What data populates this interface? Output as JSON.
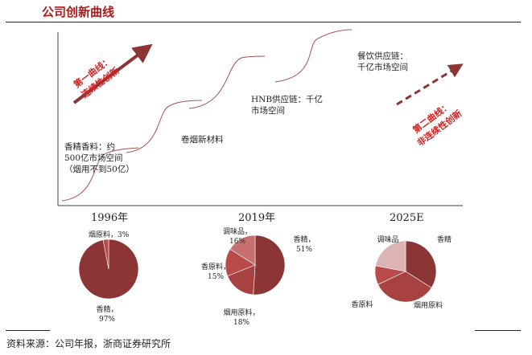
{
  "title": "公司创新曲线",
  "curve_chart": {
    "first_curve": {
      "line1": "第一曲线：",
      "line2": "连续性创新"
    },
    "second_curve": {
      "line1": "第二曲线：",
      "line2": "非连续性创新"
    },
    "annotations": [
      {
        "lines": [
          "香精香料：约",
          "500亿市场空间",
          "（烟用不到50亿）"
        ]
      },
      {
        "lines": [
          "卷烟新材料"
        ]
      },
      {
        "lines": [
          "HNB供应链：千亿",
          "市场空间"
        ]
      },
      {
        "lines": [
          "餐饮供应链：",
          "千亿市场空间"
        ]
      }
    ]
  },
  "chart_data": [
    {
      "type": "pie",
      "title": "1996年",
      "labels": [
        "香精",
        "烟原料"
      ],
      "values": [
        97,
        3
      ],
      "label_texts": [
        "香精，\n97%",
        "烟原料，3%"
      ],
      "colors": [
        "#8b3535",
        "#b84a4a"
      ]
    },
    {
      "type": "pie",
      "title": "2019年",
      "labels": [
        "香精",
        "烟用原料",
        "香原料",
        "调味品"
      ],
      "values": [
        51,
        18,
        15,
        16
      ],
      "label_texts": [
        "香精，\n51%",
        "烟用原料，\n18%",
        "香原料，\n15%",
        "调味品，\n16%"
      ],
      "colors": [
        "#8b3535",
        "#a84242",
        "#b84a4a",
        "#c77070"
      ]
    },
    {
      "type": "pie",
      "title": "2025E",
      "labels": [
        "香精",
        "烟用原料",
        "香原料",
        "调味品"
      ],
      "values": [
        34,
        34,
        10,
        22
      ],
      "label_texts": [
        "香精",
        "烟用原料",
        "香原料",
        "调味品"
      ],
      "colors": [
        "#8b3535",
        "#a84242",
        "#b84a4a",
        "#dcb4b4"
      ]
    }
  ],
  "source": "资料来源：公司年报，浙商证券研究所"
}
